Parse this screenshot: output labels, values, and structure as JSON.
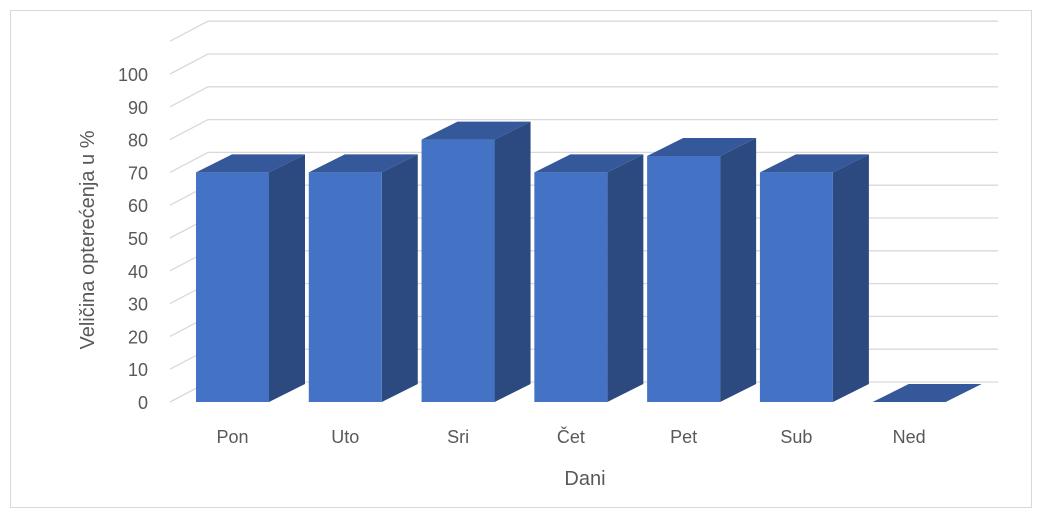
{
  "chart_data": {
    "type": "bar",
    "categories": [
      "Pon",
      "Uto",
      "Sri",
      "Čet",
      "Pet",
      "Sub",
      "Ned"
    ],
    "values": [
      70,
      70,
      80,
      70,
      75,
      70,
      0
    ],
    "title": "",
    "xlabel": "Dani",
    "ylabel": "Veličina opterećenja u %",
    "ylim": [
      0,
      100
    ],
    "yticks": [
      "0",
      "10",
      "20",
      "30",
      "40",
      "50",
      "60",
      "70",
      "80",
      "90",
      "100"
    ],
    "grid": true,
    "style": "3d-column"
  },
  "colors": {
    "bar_front": "#4472c4",
    "bar_side": "#2c4a80",
    "bar_top": "#34589a",
    "grid": "#d9d9d9",
    "text": "#595959"
  }
}
